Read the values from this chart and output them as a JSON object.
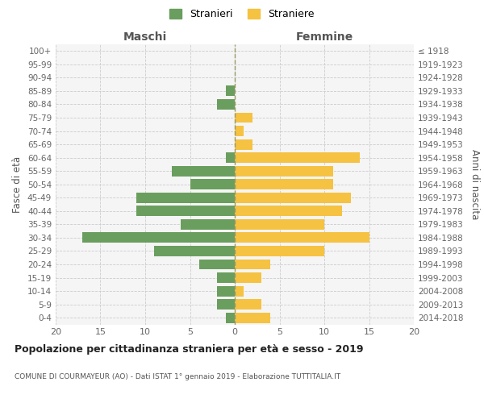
{
  "age_groups": [
    "0-4",
    "5-9",
    "10-14",
    "15-19",
    "20-24",
    "25-29",
    "30-34",
    "35-39",
    "40-44",
    "45-49",
    "50-54",
    "55-59",
    "60-64",
    "65-69",
    "70-74",
    "75-79",
    "80-84",
    "85-89",
    "90-94",
    "95-99",
    "100+"
  ],
  "birth_years": [
    "2014-2018",
    "2009-2013",
    "2004-2008",
    "1999-2003",
    "1994-1998",
    "1989-1993",
    "1984-1988",
    "1979-1983",
    "1974-1978",
    "1969-1973",
    "1964-1968",
    "1959-1963",
    "1954-1958",
    "1949-1953",
    "1944-1948",
    "1939-1943",
    "1934-1938",
    "1929-1933",
    "1924-1928",
    "1919-1923",
    "≤ 1918"
  ],
  "maschi": [
    1,
    2,
    2,
    2,
    4,
    9,
    17,
    6,
    11,
    11,
    5,
    7,
    1,
    0,
    0,
    0,
    2,
    1,
    0,
    0,
    0
  ],
  "femmine": [
    4,
    3,
    1,
    3,
    4,
    10,
    15,
    10,
    12,
    13,
    11,
    11,
    14,
    2,
    1,
    2,
    0,
    0,
    0,
    0,
    0
  ],
  "maschi_color": "#6a9e5e",
  "femmine_color": "#f5c242",
  "grid_color": "#cccccc",
  "title": "Popolazione per cittadinanza straniera per età e sesso - 2019",
  "subtitle": "COMUNE DI COURMAYEUR (AO) - Dati ISTAT 1° gennaio 2019 - Elaborazione TUTTITALIA.IT",
  "ylabel_left": "Fasce di età",
  "ylabel_right": "Anni di nascita",
  "xlabel_left": "Maschi",
  "xlabel_right": "Femmine",
  "legend_maschi": "Stranieri",
  "legend_femmine": "Straniere",
  "xlim": 20,
  "background_color": "#ffffff",
  "plot_bg_color": "#f5f5f5"
}
